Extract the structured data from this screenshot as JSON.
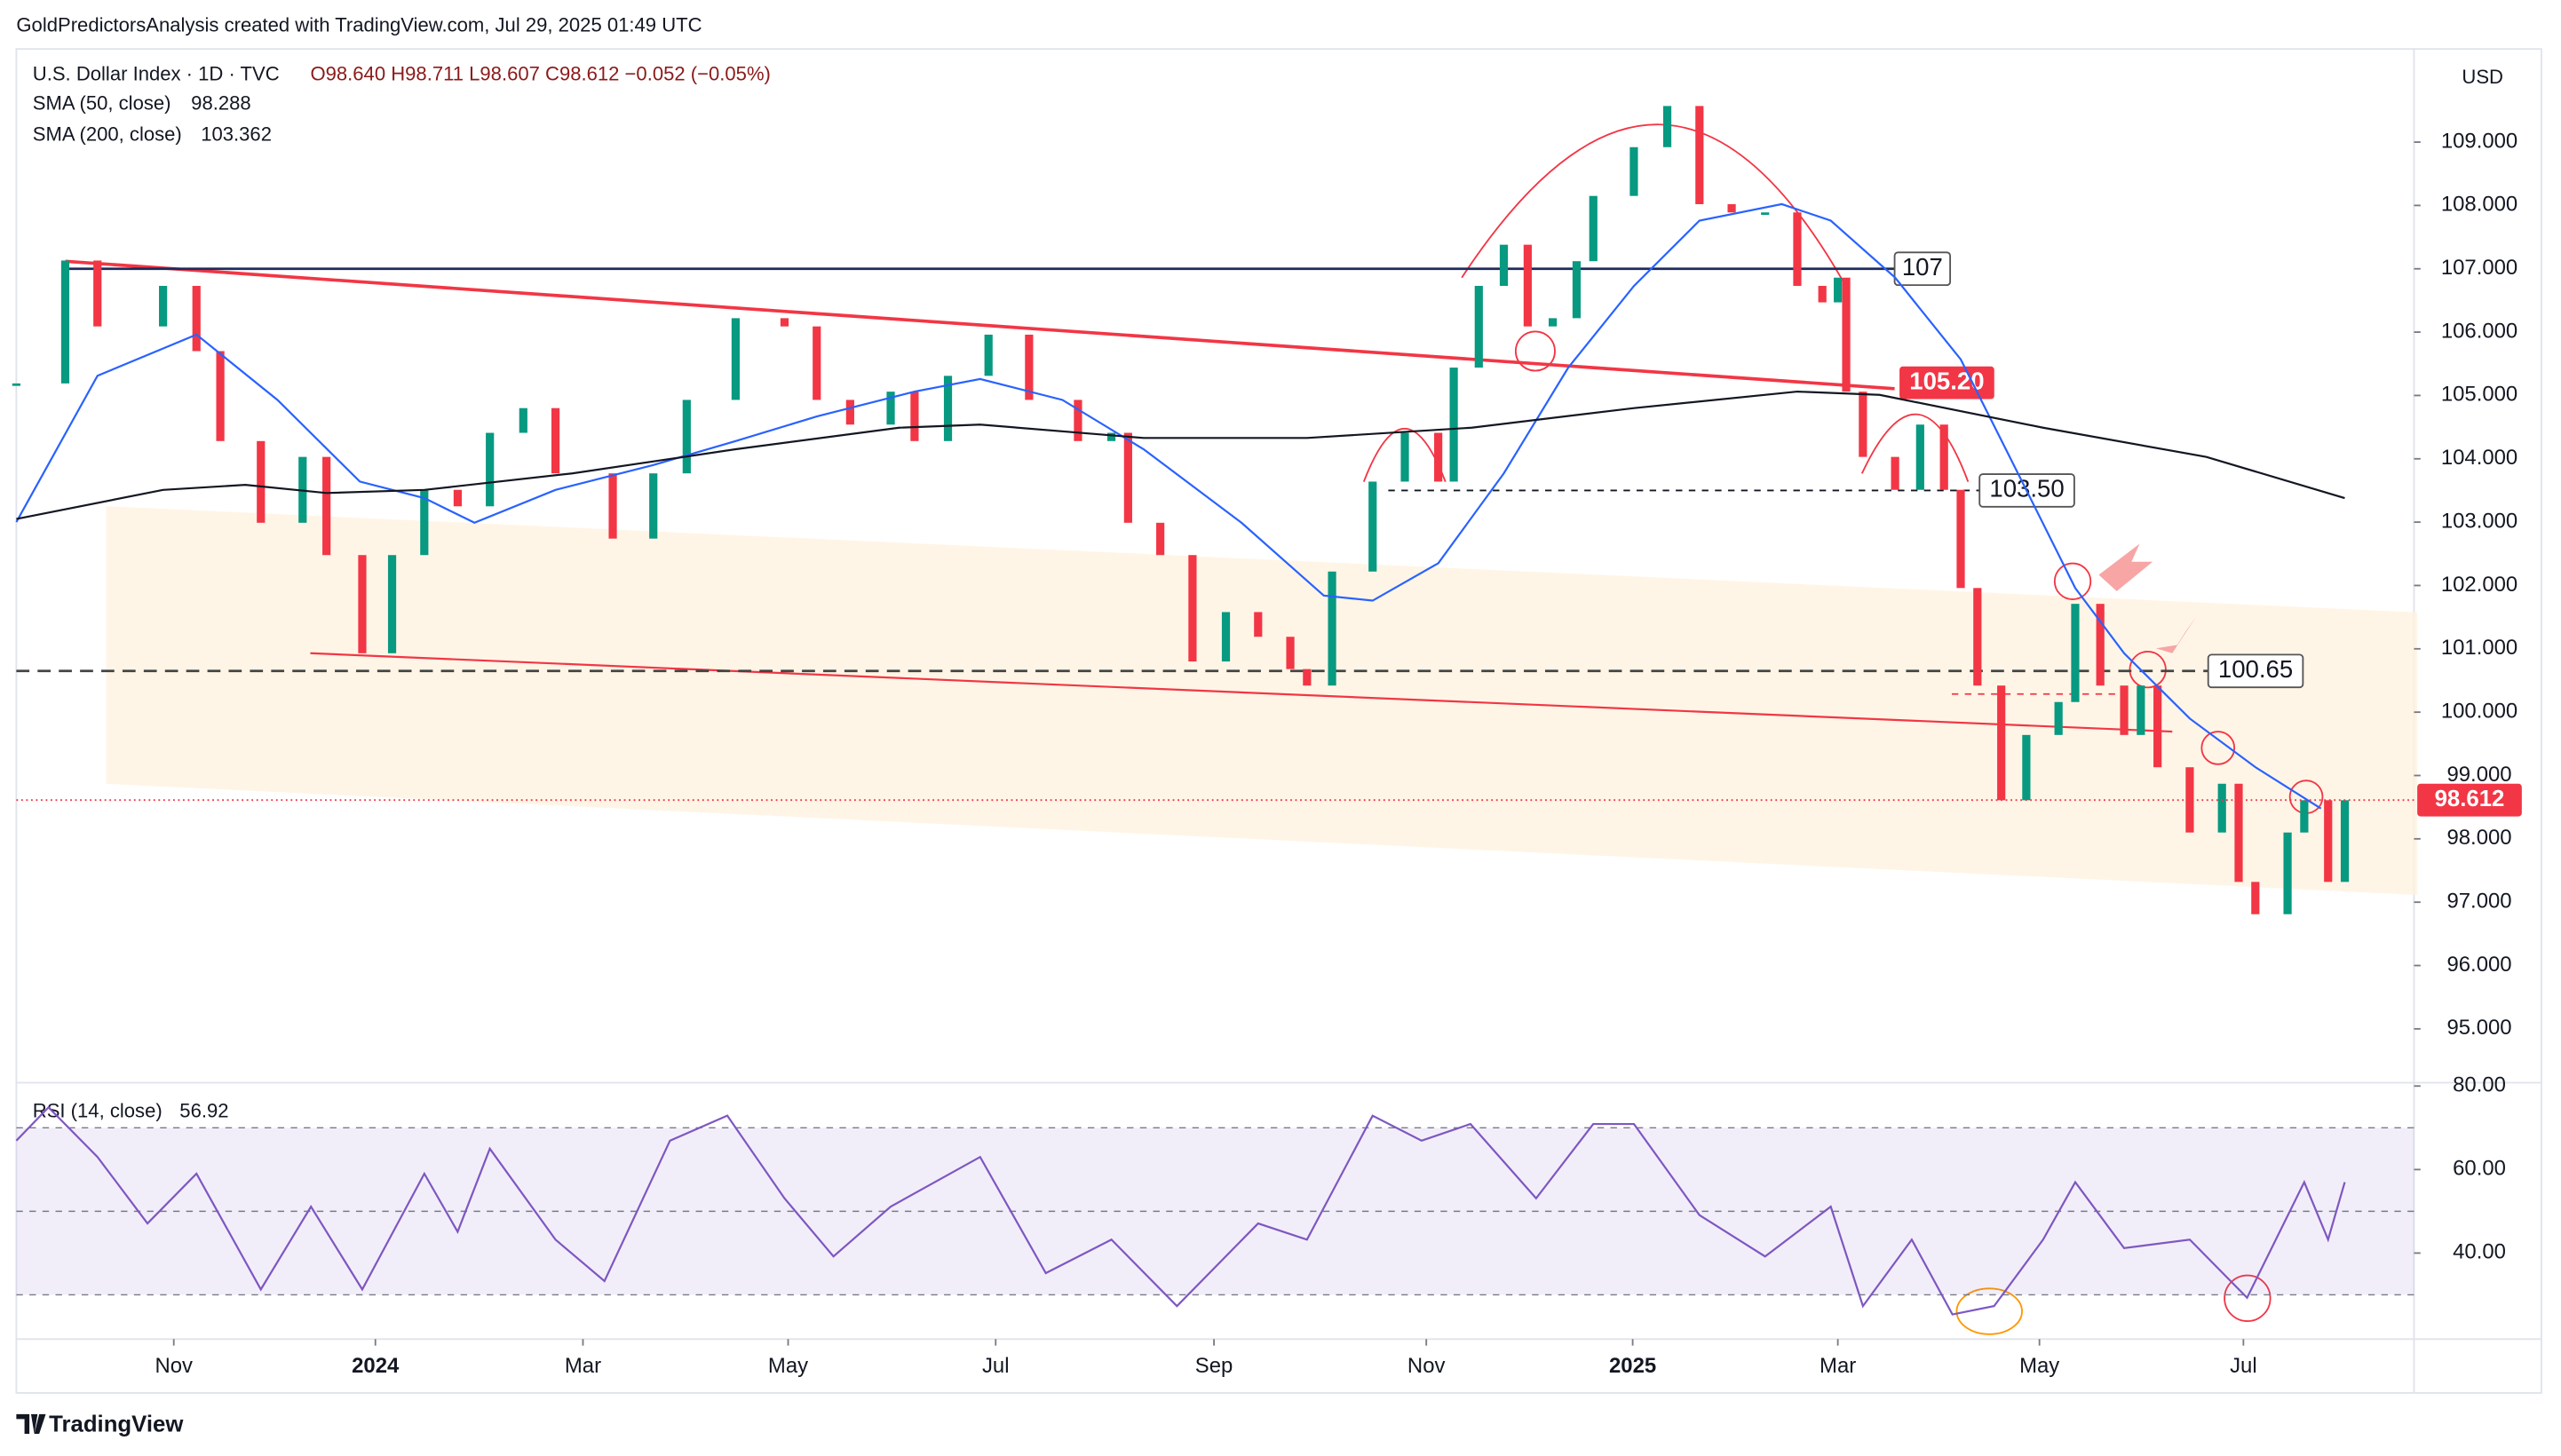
{
  "header": "GoldPredictorsAnalysis created with TradingView.com, Jul 29, 2025 01:49 UTC",
  "footer": "TradingView",
  "chart_data": {
    "type": "candlestick",
    "title": "U.S. Dollar Index · 1D · TVC",
    "ohlc_text": "O98.640 H98.711 L98.607 C98.612 −0.052 (−0.05%)",
    "currency": "USD",
    "up_color": "#089981",
    "down_color": "#f23645",
    "x": [
      0,
      4.1,
      6.8,
      12.3,
      15.1,
      17.1,
      20.5,
      24.0,
      26.0,
      29.0,
      31.5,
      34.2,
      37.0,
      39.7,
      42.5,
      45.2,
      50.0,
      53.4,
      56.2,
      60.3,
      64.4,
      67.1,
      69.9,
      73.3,
      75.3,
      78.1,
      81.5,
      84.9,
      89.0,
      91.8,
      93.2,
      95.9,
      98.6,
      101.4,
      104.1,
      106.8,
      108.2,
      110.3,
      113.7,
      116.4,
      119.2,
      120.5,
      122.6,
      124.7,
      126.7,
      128.8,
      130.8,
      132.2,
      135.6,
      138.4,
      141.1,
      143.8,
      146.6,
      149.3,
      151.4,
      152.7,
      153.4,
      154.8,
      157.5,
      159.6,
      161.6,
      163.0,
      164.4,
      166.4,
      168.5,
      171.2,
      172.6,
      174.7,
      176.7,
      178.1,
      179.5,
      182.2,
      184.9,
      186.3,
      187.7,
      190.4,
      191.8,
      193.8,
      195.2
    ],
    "values": [
      105.19,
      107.13,
      106.09,
      106.73,
      105.7,
      104.28,
      102.99,
      104.03,
      102.48,
      100.93,
      102.48,
      103.51,
      103.25,
      104.41,
      104.8,
      103.77,
      102.74,
      103.77,
      104.93,
      106.22,
      106.09,
      104.93,
      104.54,
      105.06,
      104.28,
      105.31,
      105.96,
      104.93,
      104.28,
      104.41,
      102.99,
      102.48,
      100.8,
      101.58,
      101.19,
      100.68,
      100.42,
      102.22,
      103.64,
      104.41,
      103.64,
      105.44,
      106.73,
      107.38,
      106.09,
      106.22,
      107.12,
      108.15,
      108.92,
      109.57,
      108.02,
      107.89,
      107.89,
      106.73,
      106.47,
      106.86,
      105.06,
      104.03,
      103.51,
      104.54,
      103.51,
      101.96,
      100.42,
      98.61,
      99.64,
      100.16,
      101.71,
      100.42,
      99.64,
      100.42,
      99.13,
      98.1,
      98.87,
      97.32,
      96.81,
      98.1,
      98.61,
      97.32,
      98.61
    ],
    "last_price": 98.612,
    "xlim": [
      0,
      201
    ],
    "xticks": [
      {
        "value": 13.2,
        "label": "Nov"
      },
      {
        "value": 30.1,
        "label": "2024"
      },
      {
        "value": 47.5,
        "label": "Mar"
      },
      {
        "value": 64.7,
        "label": "May"
      },
      {
        "value": 82.1,
        "label": "Jul"
      },
      {
        "value": 100.4,
        "label": "Sep"
      },
      {
        "value": 118.2,
        "label": "Nov"
      },
      {
        "value": 135.5,
        "label": "2025"
      },
      {
        "value": 152.7,
        "label": "Mar"
      },
      {
        "value": 169.6,
        "label": "May"
      },
      {
        "value": 186.7,
        "label": "Jul"
      }
    ],
    "ylim": [
      94.15,
      110.47
    ],
    "yticks": [
      {
        "value": 95,
        "label": "95.000"
      },
      {
        "value": 96,
        "label": "96.000"
      },
      {
        "value": 97,
        "label": "97.000"
      },
      {
        "value": 98,
        "label": "98.000"
      },
      {
        "value": 99,
        "label": "99.000"
      },
      {
        "value": 100,
        "label": "100.000"
      },
      {
        "value": 101,
        "label": "101.000"
      },
      {
        "value": 102,
        "label": "102.000"
      },
      {
        "value": 103,
        "label": "103.000"
      },
      {
        "value": 104,
        "label": "104.000"
      },
      {
        "value": 105,
        "label": "105.000"
      },
      {
        "value": 106,
        "label": "106.000"
      },
      {
        "value": 107,
        "label": "107.000"
      },
      {
        "value": 108,
        "label": "108.000"
      },
      {
        "value": 109,
        "label": "109.000"
      }
    ],
    "series": [
      {
        "name": "SMA (50, close)",
        "last": 98.288,
        "color": "#2962ff",
        "x": [
          0,
          6.8,
          15.1,
          21.9,
          28.8,
          34.2,
          38.4,
          45.2,
          53.4,
          60.3,
          67.1,
          75.3,
          80.8,
          87.7,
          94.5,
          102.7,
          109.6,
          113.7,
          119.2,
          124.7,
          130.1,
          135.6,
          141.1,
          148.0,
          152.1,
          157.5,
          163.0,
          168.5,
          172.6,
          176.7,
          182.2,
          187.7,
          193.2
        ],
        "values": [
          103.0,
          105.31,
          105.96,
          104.93,
          103.64,
          103.38,
          102.99,
          103.51,
          103.9,
          104.28,
          104.67,
          105.06,
          105.26,
          104.93,
          104.15,
          102.99,
          101.84,
          101.76,
          102.35,
          103.77,
          105.44,
          106.73,
          107.76,
          108.02,
          107.76,
          106.86,
          105.57,
          103.51,
          101.96,
          100.93,
          99.9,
          99.13,
          98.48
        ]
      },
      {
        "name": "SMA (200, close)",
        "last": 103.362,
        "color": "#131722",
        "x": [
          0,
          12.3,
          19.2,
          26.0,
          34.2,
          46.6,
          60.3,
          74.0,
          80.8,
          94.5,
          108.2,
          122.0,
          135.6,
          149.3,
          156.2,
          169.9,
          183.6,
          195.2
        ],
        "values": [
          103.05,
          103.51,
          103.59,
          103.46,
          103.51,
          103.77,
          104.15,
          104.49,
          104.54,
          104.33,
          104.33,
          104.49,
          104.8,
          105.06,
          105.01,
          104.49,
          104.03,
          103.38
        ]
      }
    ],
    "levels": [
      {
        "value": 107,
        "color": "#1e2a5a"
      },
      {
        "value": 105.2,
        "label": "105.20",
        "color": "#f23645"
      },
      {
        "value": 103.5,
        "label": "103.50",
        "color": "#131722"
      },
      {
        "value": 100.65,
        "color": "#131722"
      }
    ],
    "rsi": {
      "name": "RSI (14, close)",
      "last": 56.92,
      "color": "#7e57c2",
      "x": [
        0,
        2.7,
        6.8,
        11.0,
        15.1,
        20.5,
        24.7,
        29.0,
        34.2,
        37.0,
        39.7,
        45.2,
        49.3,
        54.8,
        59.6,
        64.4,
        68.5,
        73.3,
        80.8,
        86.3,
        91.8,
        97.3,
        104.1,
        108.2,
        113.7,
        117.8,
        121.9,
        127.4,
        132.2,
        135.6,
        141.1,
        146.6,
        152.1,
        154.8,
        158.9,
        162.3,
        165.8,
        169.9,
        172.6,
        176.7,
        182.2,
        187.0,
        191.8,
        193.8,
        195.2
      ],
      "values": [
        66.9,
        74.9,
        63.0,
        47.1,
        59.0,
        31.3,
        51.1,
        31.3,
        59.0,
        45.1,
        65.0,
        43.2,
        33.3,
        66.9,
        72.9,
        53.1,
        39.2,
        51.1,
        63.0,
        35.2,
        43.2,
        27.3,
        47.1,
        43.2,
        72.9,
        66.9,
        70.9,
        53.1,
        70.9,
        70.9,
        49.1,
        39.2,
        51.1,
        27.3,
        43.2,
        25.3,
        27.3,
        43.2,
        57.0,
        41.2,
        43.2,
        29.3,
        57.0,
        43.2,
        57.0
      ],
      "ylim": [
        19.4,
        80.8
      ],
      "yticks": [
        {
          "value": 40,
          "label": "40.00"
        },
        {
          "value": 60,
          "label": "60.00"
        },
        {
          "value": 80,
          "label": "80.00"
        }
      ],
      "bands": [
        30,
        50,
        70
      ]
    }
  }
}
